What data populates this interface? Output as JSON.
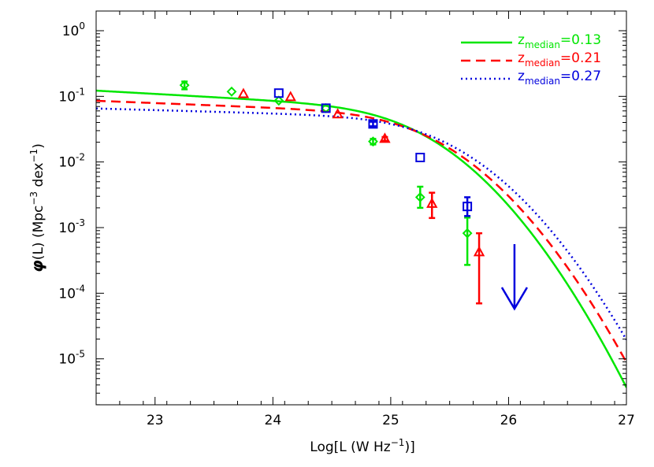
{
  "chart_data": {
    "type": "line",
    "xlabel_pre": "Log[L (W Hz",
    "xlabel_sup": "−1",
    "xlabel_post": ")]",
    "ylabel_pre": "(L) (Mpc",
    "ylabel_sup1": "−3",
    "ylabel_mid": " dex",
    "ylabel_sup2": "−1",
    "ylabel_post": ")",
    "ylabel_symbol": "φ",
    "xlim": [
      22.5,
      27
    ],
    "ylim_log10": [
      -5.7,
      0.3
    ],
    "y_scale": "log",
    "x_ticks": [
      23,
      24,
      25,
      26,
      27
    ],
    "x_tick_labels": [
      "23",
      "24",
      "25",
      "26",
      "27"
    ],
    "y_ticks_log10": [
      0,
      -1,
      -2,
      -3,
      -4,
      -5
    ],
    "y_tick_labels": [
      {
        "base": "10",
        "exp": "0"
      },
      {
        "base": "10",
        "exp": "-1"
      },
      {
        "base": "10",
        "exp": "-2"
      },
      {
        "base": "10",
        "exp": "-3"
      },
      {
        "base": "10",
        "exp": "-4"
      },
      {
        "base": "10",
        "exp": "-5"
      }
    ],
    "legend_position": "top-right",
    "series": [
      {
        "name_pre": "z",
        "name_sub": "median",
        "name_post": "=0.13",
        "color": "#00e600",
        "line_style": "solid",
        "marker": "diamond",
        "points": [
          {
            "x": 23.25,
            "y": 0.148,
            "err_lo": 0.02,
            "err_hi": 0.02
          },
          {
            "x": 23.65,
            "y": 0.118,
            "err_lo": 0.0,
            "err_hi": 0.0
          },
          {
            "x": 24.05,
            "y": 0.086,
            "err_lo": 0.0,
            "err_hi": 0.0
          },
          {
            "x": 24.45,
            "y": 0.066,
            "err_lo": 0.0,
            "err_hi": 0.0
          },
          {
            "x": 24.85,
            "y": 0.0205,
            "err_lo": 0.002,
            "err_hi": 0.002
          },
          {
            "x": 25.25,
            "y": 0.0029,
            "err_lo": 0.0009,
            "err_hi": 0.0013
          },
          {
            "x": 25.65,
            "y": 0.00082,
            "err_lo": 0.00055,
            "err_hi": 0.0006
          }
        ]
      },
      {
        "name_pre": "z",
        "name_sub": "median",
        "name_post": "=0.21",
        "color": "#ff0000",
        "line_style": "dashed",
        "marker": "triangle",
        "points": [
          {
            "x": 23.75,
            "y": 0.108,
            "err_lo": 0.0,
            "err_hi": 0.0
          },
          {
            "x": 24.15,
            "y": 0.097,
            "err_lo": 0.0,
            "err_hi": 0.0
          },
          {
            "x": 24.55,
            "y": 0.053,
            "err_lo": 0.0,
            "err_hi": 0.0
          },
          {
            "x": 24.95,
            "y": 0.0225,
            "err_lo": 0.0015,
            "err_hi": 0.0015
          },
          {
            "x": 25.35,
            "y": 0.0023,
            "err_lo": 0.0009,
            "err_hi": 0.0011
          },
          {
            "x": 25.75,
            "y": 0.00042,
            "err_lo": 0.00035,
            "err_hi": 0.0004
          }
        ]
      },
      {
        "name_pre": "z",
        "name_sub": "median",
        "name_post": "=0.27",
        "color": "#0000dd",
        "line_style": "dotted",
        "marker": "square",
        "points": [
          {
            "x": 24.05,
            "y": 0.112,
            "err_lo": 0.0,
            "err_hi": 0.0
          },
          {
            "x": 24.45,
            "y": 0.066,
            "err_lo": 0.0,
            "err_hi": 0.0
          },
          {
            "x": 24.85,
            "y": 0.038,
            "err_lo": 0.003,
            "err_hi": 0.003
          },
          {
            "x": 25.25,
            "y": 0.0117,
            "err_lo": 0.0,
            "err_hi": 0.0
          },
          {
            "x": 25.65,
            "y": 0.0021,
            "err_lo": 0.0006,
            "err_hi": 0.0008
          }
        ],
        "upper_limit": {
          "x": 26.05,
          "y_top": 0.00056,
          "y_bottom": 5.8e-05
        }
      }
    ],
    "curves": [
      {
        "series": 0,
        "phi_star": 0.075,
        "L_star": 24.62,
        "alpha": -1.1,
        "sigma": 0.55
      },
      {
        "series": 1,
        "phi_star": 0.06,
        "L_star": 24.7,
        "alpha": -1.07,
        "sigma": 0.56
      },
      {
        "series": 2,
        "phi_star": 0.05,
        "L_star": 24.82,
        "alpha": -1.05,
        "sigma": 0.56
      }
    ]
  }
}
